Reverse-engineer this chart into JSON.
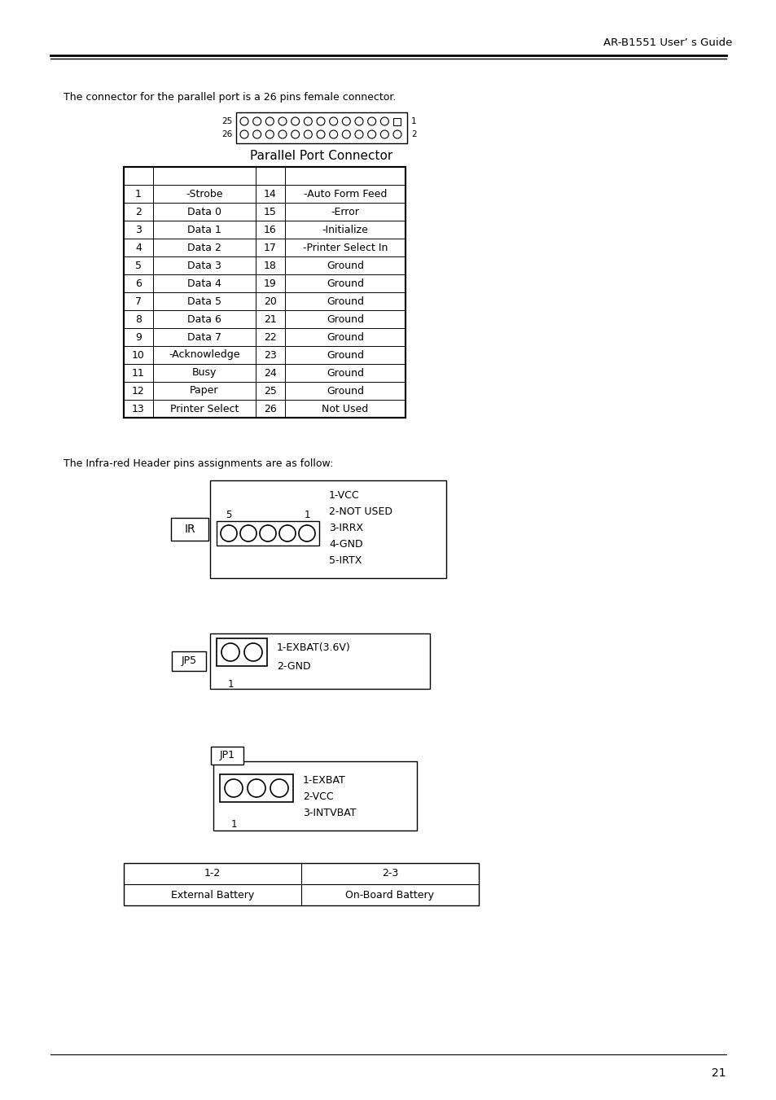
{
  "header_text": "AR-B1551 User’ s Guide",
  "page_number": "21",
  "background_color": "#ffffff",
  "parallel_intro": "The connector for the parallel port is a 26 pins female connector.",
  "parallel_label": "Parallel Port Connector",
  "parallel_table_rows": [
    [
      "1",
      "-Strobe",
      "14",
      "-Auto Form Feed"
    ],
    [
      "2",
      "Data 0",
      "15",
      "-Error"
    ],
    [
      "3",
      "Data 1",
      "16",
      "-Initialize"
    ],
    [
      "4",
      "Data 2",
      "17",
      "-Printer Select In"
    ],
    [
      "5",
      "Data 3",
      "18",
      "Ground"
    ],
    [
      "6",
      "Data 4",
      "19",
      "Ground"
    ],
    [
      "7",
      "Data 5",
      "20",
      "Ground"
    ],
    [
      "8",
      "Data 6",
      "21",
      "Ground"
    ],
    [
      "9",
      "Data 7",
      "22",
      "Ground"
    ],
    [
      "10",
      "-Acknowledge",
      "23",
      "Ground"
    ],
    [
      "11",
      "Busy",
      "24",
      "Ground"
    ],
    [
      "12",
      "Paper",
      "25",
      "Ground"
    ],
    [
      "13",
      "Printer Select",
      "26",
      "Not Used"
    ]
  ],
  "ir_intro": "The Infra-red Header pins assignments are as follow:",
  "ir_label": "IR",
  "ir_pins": [
    "1-VCC",
    "2-NOT USED",
    "3-IRRX",
    "4-GND",
    "5-IRTX"
  ],
  "jp5_label": "JP5",
  "jp5_pins": [
    "1-EXBAT(3.6V)",
    "2-GND"
  ],
  "jp1_label": "JP1",
  "jp1_pins": [
    "1-EXBAT",
    "2-VCC",
    "3-INTVBAT"
  ],
  "battery_headers": [
    "1-2",
    "2-3"
  ],
  "battery_rows": [
    [
      "External Battery",
      "On-Board Battery"
    ]
  ]
}
